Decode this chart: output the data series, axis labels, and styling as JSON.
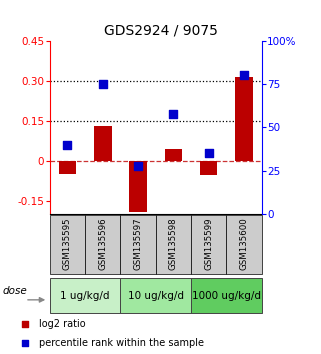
{
  "title": "GDS2924 / 9075",
  "samples": [
    "GSM135595",
    "GSM135596",
    "GSM135597",
    "GSM135598",
    "GSM135599",
    "GSM135600"
  ],
  "log2_ratio": [
    -0.05,
    0.13,
    -0.19,
    0.045,
    -0.055,
    0.315
  ],
  "percentile_rank": [
    40,
    75,
    28,
    58,
    35,
    80
  ],
  "ylim_left": [
    -0.2,
    0.45
  ],
  "ylim_right": [
    0,
    100
  ],
  "yticks_left": [
    -0.15,
    0,
    0.15,
    0.3,
    0.45
  ],
  "yticks_right": [
    0,
    25,
    50,
    75,
    100
  ],
  "ytick_labels_left": [
    "-0.15",
    "0",
    "0.15",
    "0.30",
    "0.45"
  ],
  "ytick_labels_right": [
    "0",
    "25",
    "50",
    "75",
    "100%"
  ],
  "hlines_dotted": [
    0.15,
    0.3
  ],
  "hline_dashed": 0,
  "dose_groups": [
    {
      "label": "1 ug/kg/d",
      "indices": [
        0,
        1
      ],
      "color": "#c8f0c8"
    },
    {
      "label": "10 ug/kg/d",
      "indices": [
        2,
        3
      ],
      "color": "#a0e8a0"
    },
    {
      "label": "1000 ug/kg/d",
      "indices": [
        4,
        5
      ],
      "color": "#60cc60"
    }
  ],
  "bar_color": "#bb0000",
  "dot_color": "#0000cc",
  "bar_width": 0.5,
  "dot_size": 28,
  "dose_label": "dose",
  "legend_bar": "log2 ratio",
  "legend_dot": "percentile rank within the sample",
  "sample_box_color": "#cccccc",
  "title_fontsize": 10,
  "tick_fontsize": 7.5,
  "dose_fontsize": 7.5,
  "legend_fontsize": 7,
  "legend_marker_size": 22
}
